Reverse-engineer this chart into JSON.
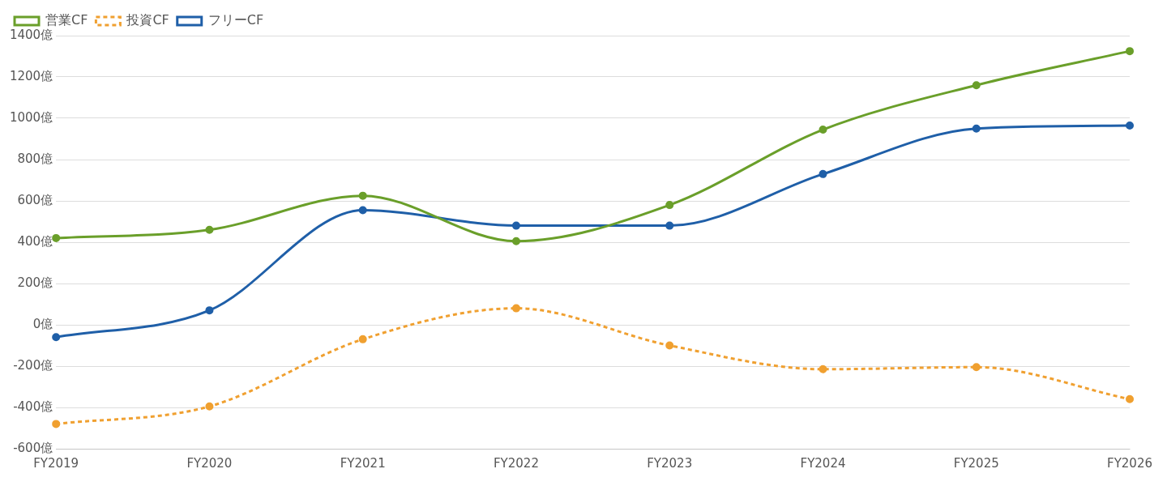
{
  "chart_data": {
    "type": "line",
    "categories": [
      "FY2019",
      "FY2020",
      "FY2021",
      "FY2022",
      "FY2023",
      "FY2024",
      "FY2025",
      "FY2026"
    ],
    "series": [
      {
        "name": "営業CF",
        "color": "#6a9f2a",
        "values": [
          420,
          460,
          625,
          405,
          580,
          945,
          1160,
          1325
        ],
        "line_style": "solid"
      },
      {
        "name": "投資CF",
        "color": "#f0a030",
        "values": [
          -480,
          -395,
          -70,
          80,
          -100,
          -215,
          -205,
          -360
        ],
        "line_style": "dashed"
      },
      {
        "name": "フリーCF",
        "color": "#1f5fa8",
        "values": [
          -60,
          70,
          555,
          480,
          480,
          730,
          950,
          965
        ],
        "line_style": "solid"
      }
    ],
    "ylim": [
      -600,
      1400
    ],
    "yticks": [
      {
        "value": -600,
        "label": "-600億"
      },
      {
        "value": -400,
        "label": "-400億"
      },
      {
        "value": -200,
        "label": "-200億"
      },
      {
        "value": 0,
        "label": "0億"
      },
      {
        "value": 200,
        "label": "200億"
      },
      {
        "value": 400,
        "label": "400億"
      },
      {
        "value": 600,
        "label": "600億"
      },
      {
        "value": 800,
        "label": "800億"
      },
      {
        "value": 1000,
        "label": "1000億"
      },
      {
        "value": 1200,
        "label": "1200億"
      },
      {
        "value": 1400,
        "label": "1400億"
      }
    ],
    "grid": "y",
    "legend": "top left",
    "marker": "circle"
  }
}
